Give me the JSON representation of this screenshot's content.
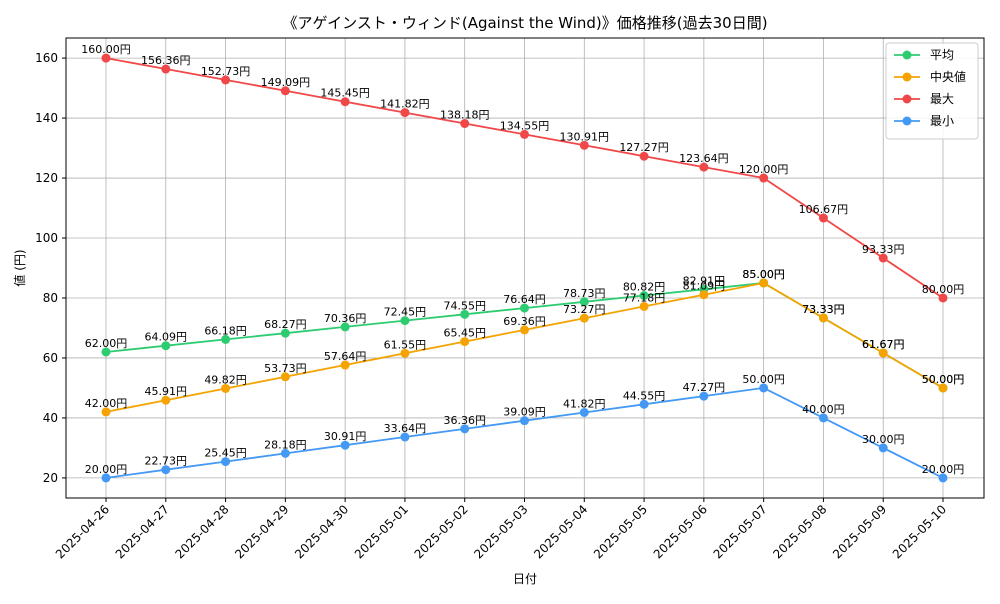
{
  "chart_data": {
    "type": "line",
    "title": "《アゲインスト・ウィンド(Against the Wind)》価格推移(過去30日間)",
    "xlabel": "日付",
    "ylabel": "値 (円)",
    "categories": [
      "2025-04-26",
      "2025-04-27",
      "2025-04-28",
      "2025-04-29",
      "2025-04-30",
      "2025-05-01",
      "2025-05-02",
      "2025-05-03",
      "2025-05-04",
      "2025-05-05",
      "2025-05-06",
      "2025-05-07",
      "2025-05-08",
      "2025-05-09",
      "2025-05-10"
    ],
    "ylim": [
      13.3,
      166.7
    ],
    "yticks": [
      20,
      40,
      60,
      80,
      100,
      120,
      140,
      160
    ],
    "grid": true,
    "legend_position": "top-right",
    "value_suffix": "円",
    "series": [
      {
        "name": "平均",
        "color": "#2ecc71",
        "values": [
          62.0,
          64.09,
          66.18,
          68.27,
          70.36,
          72.45,
          74.55,
          76.64,
          78.73,
          80.82,
          82.91,
          85.0,
          73.33,
          61.67,
          50.0
        ]
      },
      {
        "name": "中央値",
        "color": "#f5a300",
        "values": [
          42.0,
          45.91,
          49.82,
          53.73,
          57.64,
          61.55,
          65.45,
          69.36,
          73.27,
          77.18,
          81.09,
          85.0,
          73.33,
          61.67,
          50.0
        ]
      },
      {
        "name": "最大",
        "color": "#f04848",
        "values": [
          160.0,
          156.36,
          152.73,
          149.09,
          145.45,
          141.82,
          138.18,
          134.55,
          130.91,
          127.27,
          123.64,
          120.0,
          106.67,
          93.33,
          80.0
        ]
      },
      {
        "name": "最小",
        "color": "#4499f5",
        "values": [
          20.0,
          22.73,
          25.45,
          28.18,
          30.91,
          33.64,
          36.36,
          39.09,
          41.82,
          44.55,
          47.27,
          50.0,
          40.0,
          30.0,
          20.0
        ]
      }
    ]
  }
}
